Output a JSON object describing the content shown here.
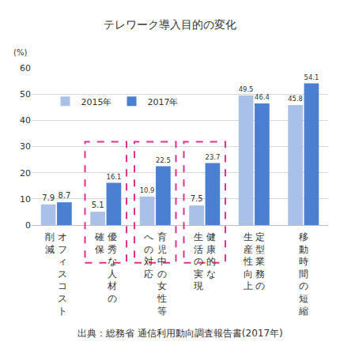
{
  "chart_data": {
    "type": "bar",
    "title": "テレワーク導入目的の変化",
    "ylabel": "(%)",
    "categories": [
      "オフィスコスト\n削減",
      "優秀な人材の\n確保",
      "育児中の女性等\nへの対応",
      "健康的な\n生活の実現",
      "定型業務の\n生産性向上",
      "移動時間の短縮"
    ],
    "series": [
      {
        "name": "2015年",
        "color": "#a9c1e8",
        "values": [
          7.9,
          5.1,
          10.9,
          7.5,
          49.5,
          45.8
        ]
      },
      {
        "name": "2017年",
        "color": "#4a7fd1",
        "values": [
          8.7,
          16.1,
          22.5,
          23.7,
          46.4,
          54.1
        ]
      }
    ],
    "ylim": [
      0,
      60
    ],
    "yticks": [
      0,
      10,
      20,
      30,
      40,
      50,
      60
    ],
    "grid": true,
    "legend": "upper left",
    "data_labels": true,
    "source": "出典：総務省 通信利用動向調査報告書(2017年)"
  }
}
